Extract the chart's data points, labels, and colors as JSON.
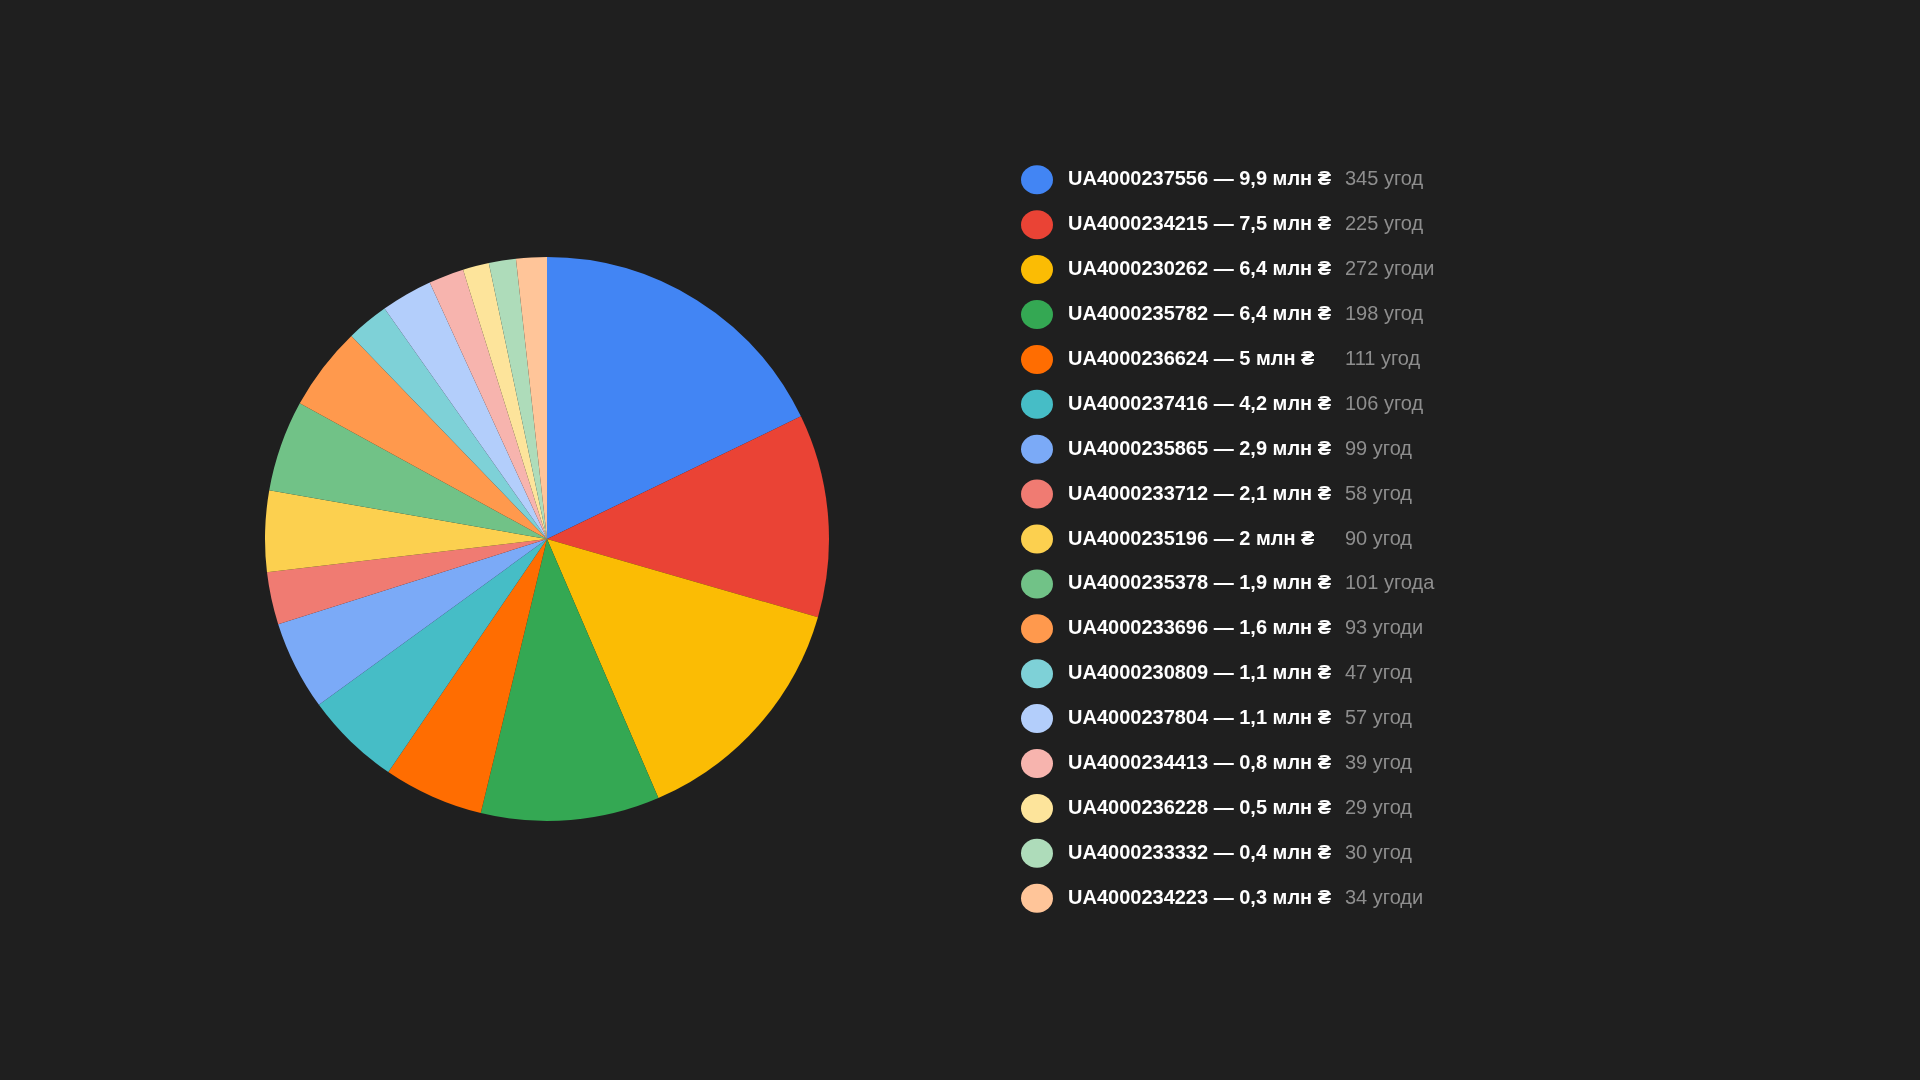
{
  "chart_data": {
    "type": "pie",
    "categories": [
      "UA4000237556 — 9,9 млн ₴",
      "UA4000234215 — 7,5 млн ₴",
      "UA4000230262 — 6,4 млн ₴",
      "UA4000235782 — 6,4 млн ₴",
      "UA4000236624 — 5 млн ₴",
      "UA4000237416 — 4,2 млн ₴",
      "UA4000235865 — 2,9 млн ₴",
      "UA4000233712 — 2,1 млн ₴",
      "UA4000235196 — 2 млн ₴",
      "UA4000235378 — 1,9 млн ₴",
      "UA4000233696 — 1,6 млн ₴",
      "UA4000230809 — 1,1 млн ₴",
      "UA4000237804 — 1,1 млн ₴",
      "UA4000234413 — 0,8 млн ₴",
      "UA4000236228 — 0,5 млн ₴",
      "UA4000233332 — 0,4 млн ₴",
      "UA4000234223 — 0,3 млн ₴"
    ],
    "values": [
      345,
      225,
      272,
      198,
      111,
      106,
      99,
      58,
      90,
      101,
      93,
      47,
      57,
      39,
      29,
      30,
      34
    ],
    "value_labels": [
      "345 угод",
      "225 угод",
      "272 угоди",
      "198 угод",
      "111 угод",
      "106 угод",
      "99 угод",
      "58 угод",
      "90 угод",
      "101 угода",
      "93 угоди",
      "47 угод",
      "57 угод",
      "39 угод",
      "29 угод",
      "30 угод",
      "34 угоди"
    ],
    "colors": [
      "#4285f4",
      "#ea4335",
      "#fbbc04",
      "#34a853",
      "#ff6d01",
      "#46bdc6",
      "#7baaf7",
      "#f07b72",
      "#fcd04f",
      "#71c287",
      "#ff994d",
      "#7ed1d7",
      "#b3cefb",
      "#f7b4ae",
      "#fde49b",
      "#aedcba",
      "#ffc599"
    ],
    "legend": "right"
  }
}
